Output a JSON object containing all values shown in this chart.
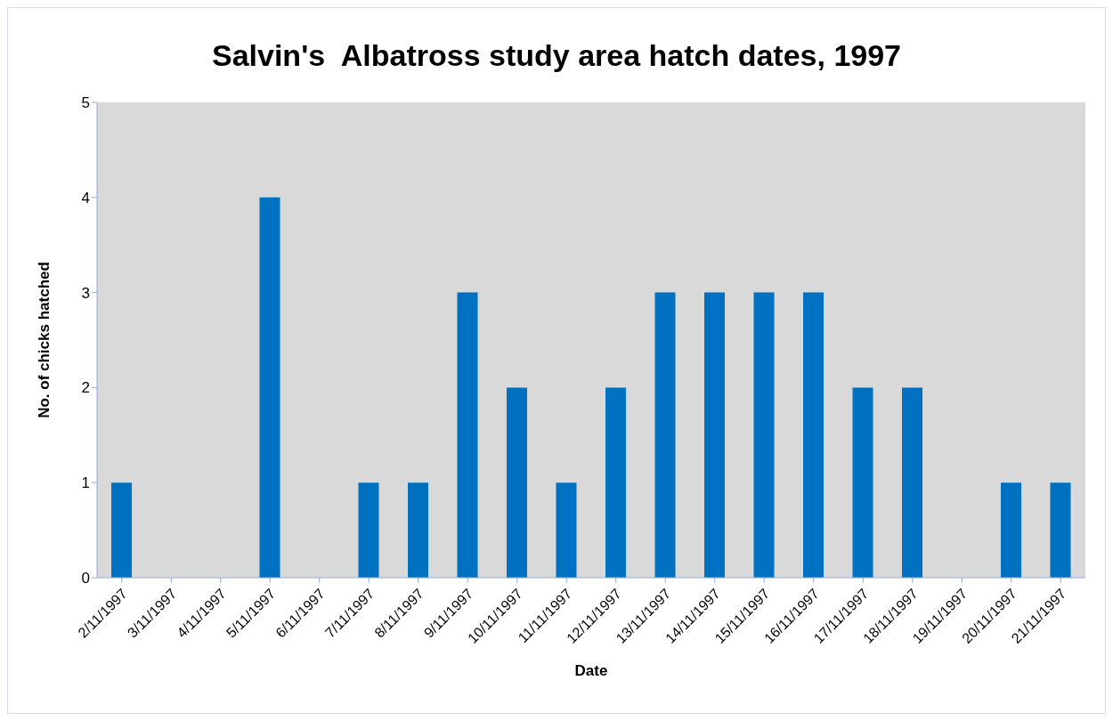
{
  "chart_data": {
    "type": "bar",
    "title": "Salvin's  Albatross study area hatch dates, 1997",
    "xlabel": "Date",
    "ylabel": "No. of chicks hatched",
    "categories": [
      "2/11/1997",
      "3/11/1997",
      "4/11/1997",
      "5/11/1997",
      "6/11/1997",
      "7/11/1997",
      "8/11/1997",
      "9/11/1997",
      "10/11/1997",
      "11/11/1997",
      "12/11/1997",
      "13/11/1997",
      "14/11/1997",
      "15/11/1997",
      "16/11/1997",
      "17/11/1997",
      "18/11/1997",
      "19/11/1997",
      "20/11/1997",
      "21/11/1997"
    ],
    "values": [
      1,
      0,
      0,
      4,
      0,
      1,
      1,
      3,
      2,
      1,
      2,
      3,
      3,
      3,
      3,
      2,
      2,
      0,
      1,
      1
    ],
    "color": "#0070c0",
    "ylim": [
      0,
      5
    ],
    "yticks": [
      0,
      1,
      2,
      3,
      4,
      5
    ]
  }
}
